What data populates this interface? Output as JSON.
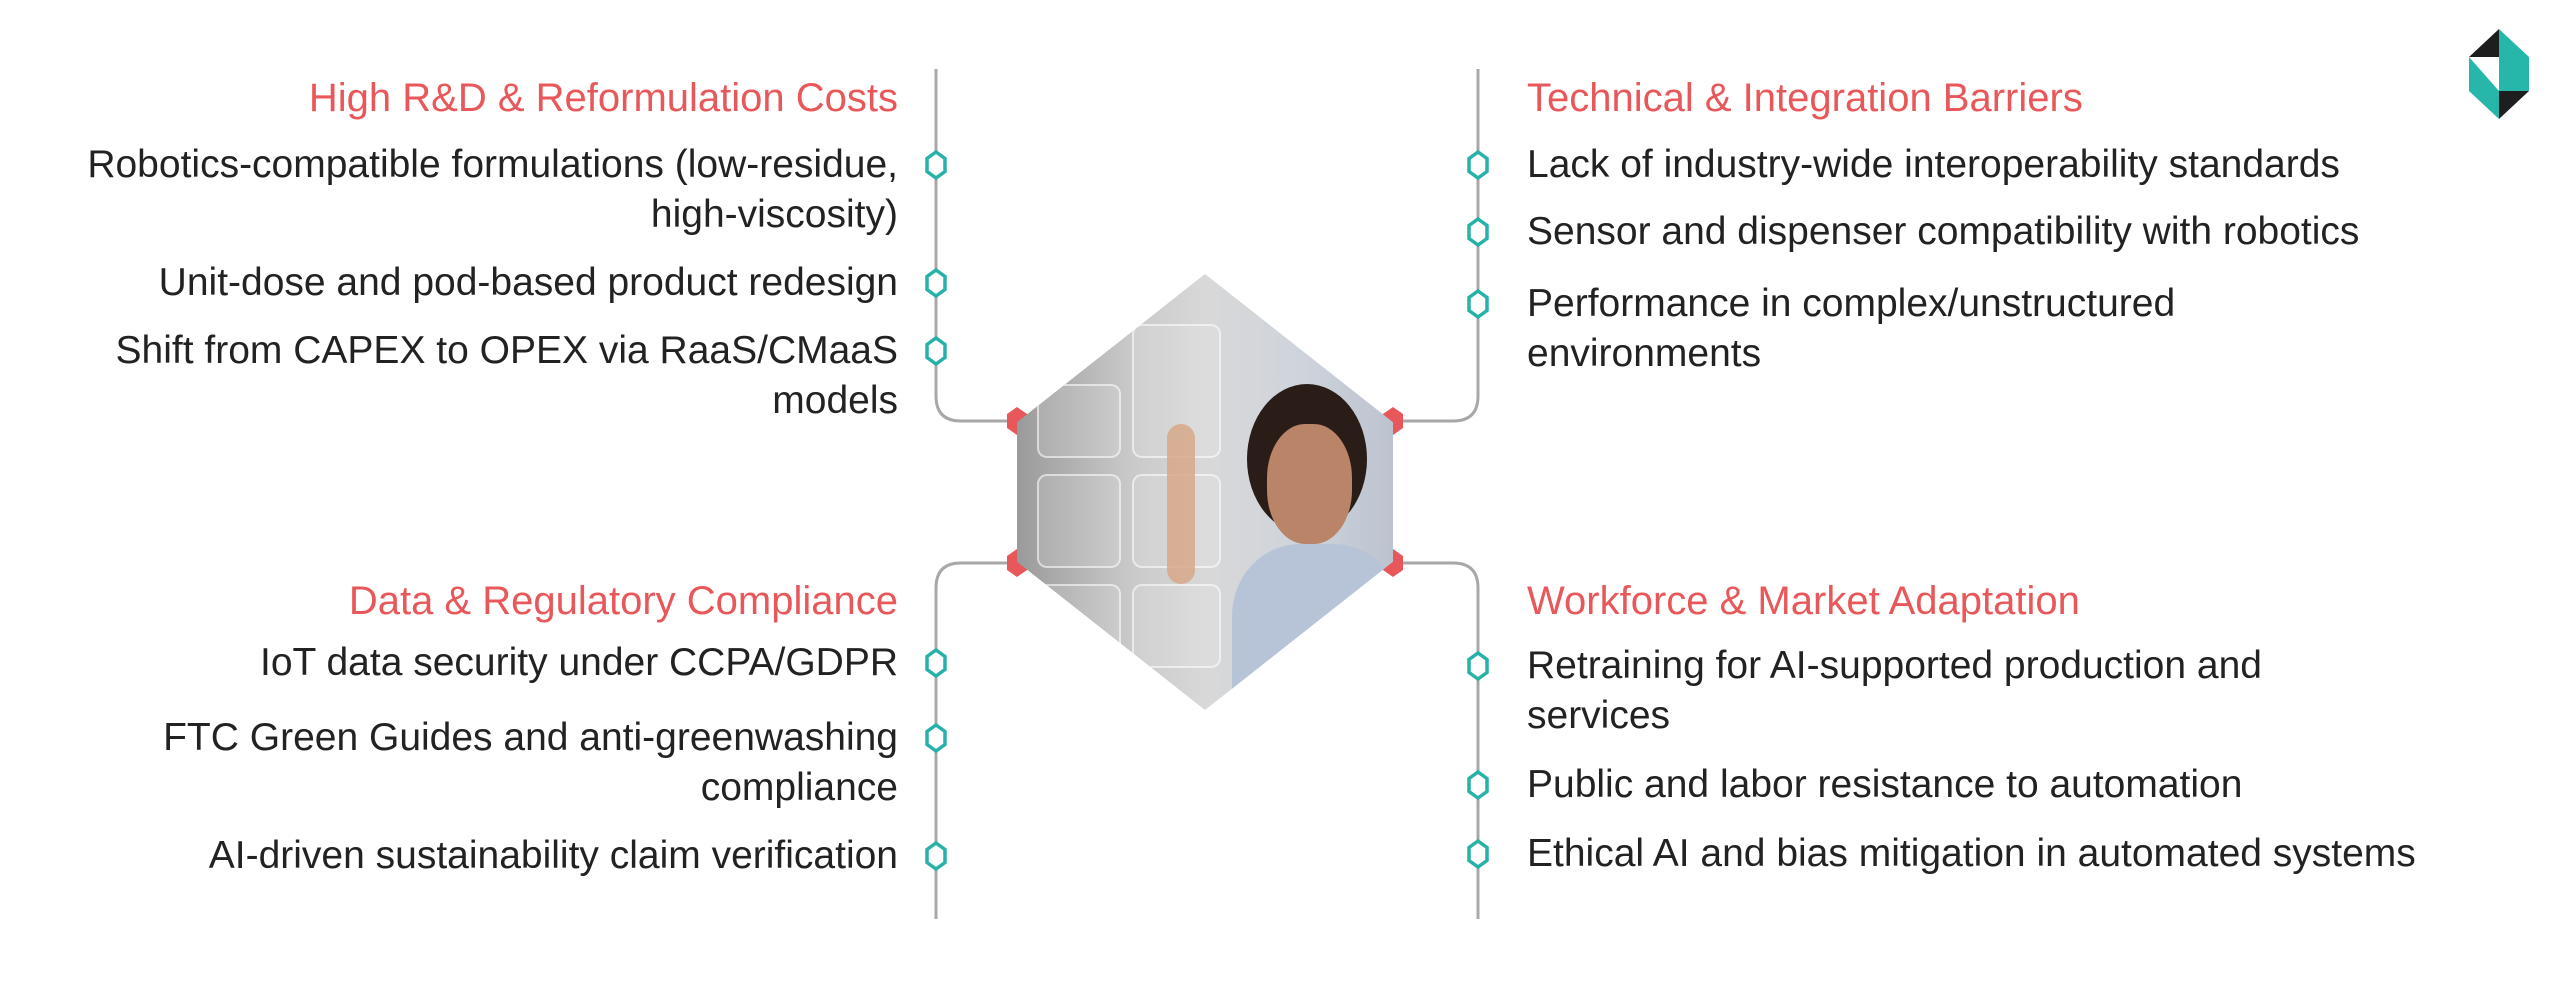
{
  "colors": {
    "heading": "#e8585a",
    "text": "#222222",
    "line": "#a8a8a8",
    "node_outline": "#27b1a8",
    "node_fill_red": "#e8585a",
    "logo_teal": "#27b6aa",
    "logo_dark": "#1e1e1e"
  },
  "center_image": {
    "description_icon": "smart-home-touch-panel-image"
  },
  "quadrants": {
    "top_left": {
      "heading": "High R&D & Reformulation Costs",
      "items": [
        "Robotics-compatible formulations (low-residue, high-viscosity)",
        "Unit-dose and pod-based product redesign",
        "Shift from CAPEX to OPEX via RaaS/CMaaS models"
      ]
    },
    "top_right": {
      "heading": "Technical & Integration Barriers",
      "items": [
        "Lack of industry-wide interoperability standards",
        "Sensor and dispenser compatibility with robotics",
        "Performance in complex/unstructured environments"
      ]
    },
    "bottom_left": {
      "heading": "Data & Regulatory Compliance",
      "items": [
        "IoT data security under CCPA/GDPR",
        "FTC Green Guides and anti-greenwashing compliance",
        "AI-driven sustainability claim verification"
      ]
    },
    "bottom_right": {
      "heading": "Workforce & Market Adaptation",
      "items": [
        "Retraining for AI-supported production and services",
        "Public and labor resistance to automation",
        "Ethical AI and bias mitigation in automated systems"
      ]
    }
  }
}
